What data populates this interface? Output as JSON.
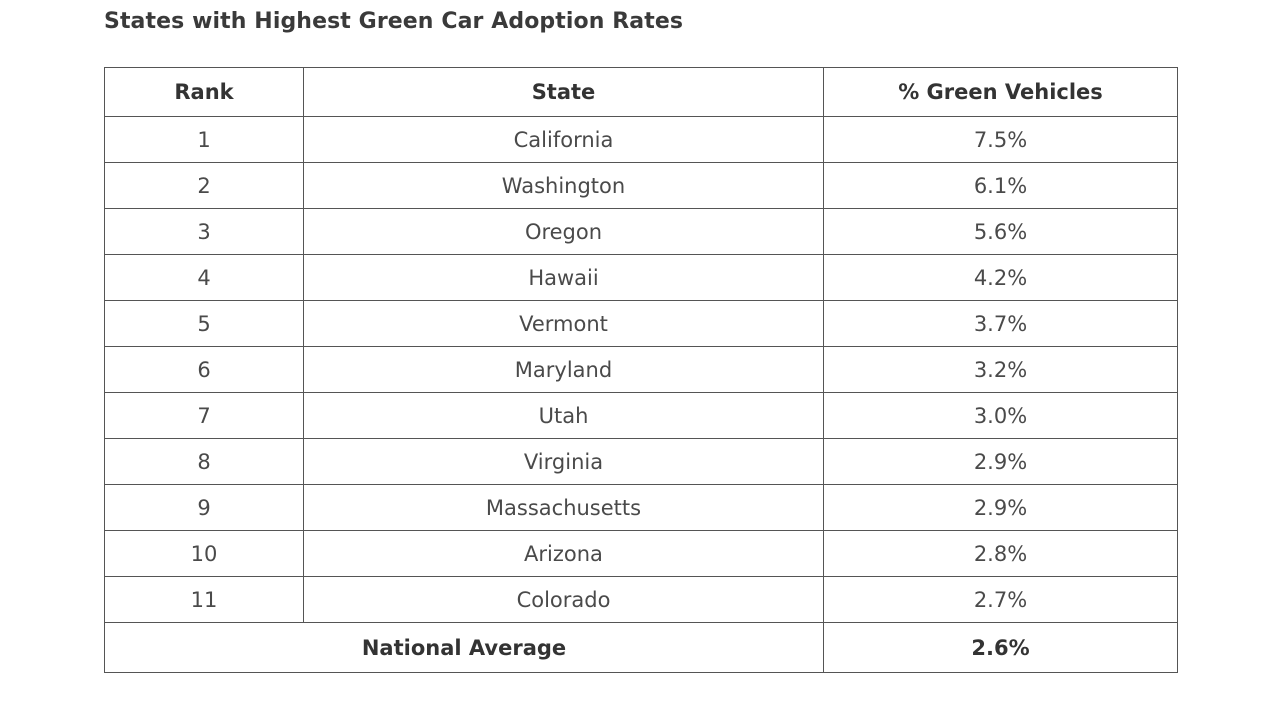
{
  "title": "States with Highest Green Car Adoption Rates",
  "table": {
    "headers": {
      "rank": "Rank",
      "state": "State",
      "pct": "% Green Vehicles"
    },
    "rows": [
      {
        "rank": "1",
        "state": "California",
        "pct": "7.5%"
      },
      {
        "rank": "2",
        "state": "Washington",
        "pct": "6.1%"
      },
      {
        "rank": "3",
        "state": "Oregon",
        "pct": "5.6%"
      },
      {
        "rank": "4",
        "state": "Hawaii",
        "pct": "4.2%"
      },
      {
        "rank": "5",
        "state": "Vermont",
        "pct": "3.7%"
      },
      {
        "rank": "6",
        "state": "Maryland",
        "pct": "3.2%"
      },
      {
        "rank": "7",
        "state": "Utah",
        "pct": "3.0%"
      },
      {
        "rank": "8",
        "state": "Virginia",
        "pct": "2.9%"
      },
      {
        "rank": "9",
        "state": "Massachusetts",
        "pct": "2.9%"
      },
      {
        "rank": "10",
        "state": "Arizona",
        "pct": "2.8%"
      },
      {
        "rank": "11",
        "state": "Colorado",
        "pct": "2.7%"
      }
    ],
    "total": {
      "label": "National Average",
      "pct": "2.6%"
    }
  }
}
